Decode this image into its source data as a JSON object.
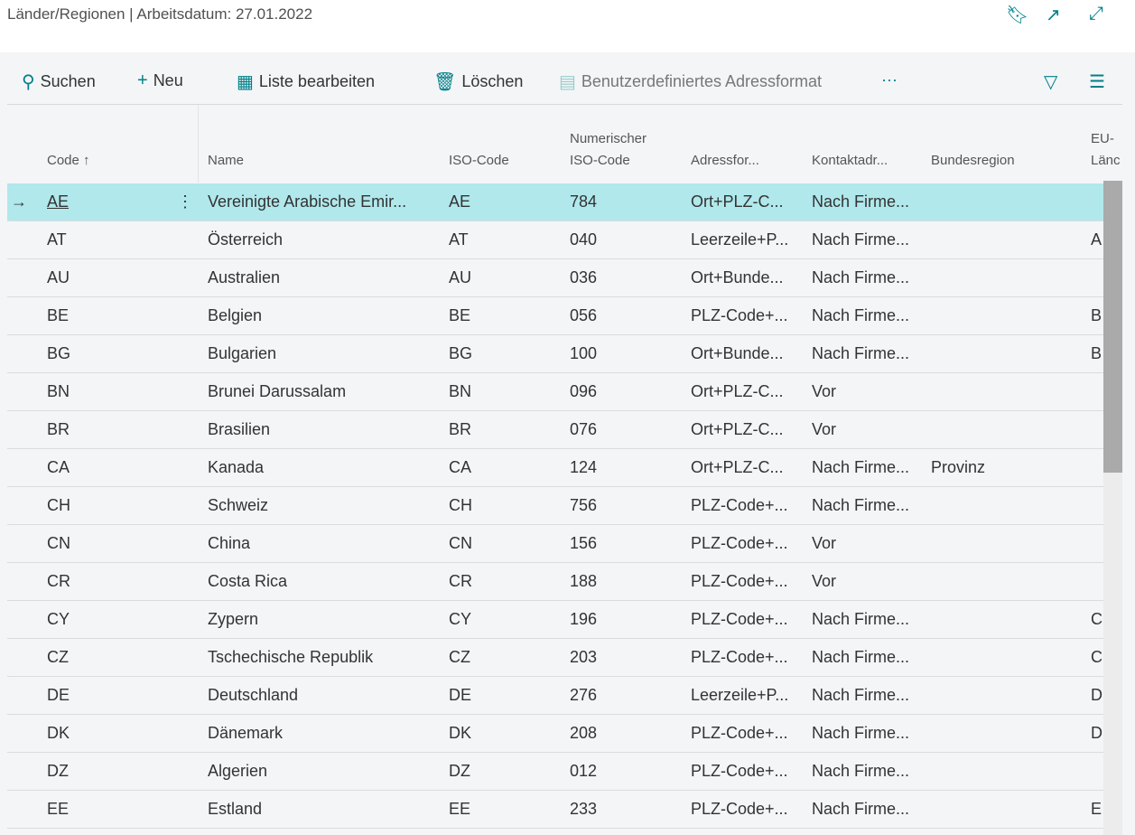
{
  "header": {
    "title": "Länder/Regionen | Arbeitsdatum: 27.01.2022",
    "icons": [
      "bookmark-icon",
      "open-new-window-icon",
      "expand-icon"
    ]
  },
  "toolbar": {
    "search": "Suchen",
    "new": "Neu",
    "edit_list": "Liste bearbeiten",
    "delete": "Löschen",
    "custom_address": "Benutzerdefiniertes Adressformat",
    "more": "···"
  },
  "columns": {
    "code": "Code",
    "sort_indicator": "↑",
    "name": "Name",
    "iso": "ISO-Code",
    "numeric_iso_1": "Numerischer",
    "numeric_iso_2": "ISO-Code",
    "address_format": "Adressfor...",
    "contact_address": "Kontaktadr...",
    "county": "Bundesregion",
    "eu_1": "EU-",
    "eu_2": "Länc"
  },
  "rows": [
    {
      "code": "AE",
      "name": "Vereinigte Arabische Emir...",
      "iso": "AE",
      "num": "784",
      "addr": "Ort+PLZ-C...",
      "contact": "Nach Firme...",
      "county": "",
      "eu": ""
    },
    {
      "code": "AT",
      "name": "Österreich",
      "iso": "AT",
      "num": "040",
      "addr": "Leerzeile+P...",
      "contact": "Nach Firme...",
      "county": "",
      "eu": "A"
    },
    {
      "code": "AU",
      "name": "Australien",
      "iso": "AU",
      "num": "036",
      "addr": "Ort+Bunde...",
      "contact": "Nach Firme...",
      "county": "",
      "eu": ""
    },
    {
      "code": "BE",
      "name": "Belgien",
      "iso": "BE",
      "num": "056",
      "addr": "PLZ-Code+...",
      "contact": "Nach Firme...",
      "county": "",
      "eu": "B"
    },
    {
      "code": "BG",
      "name": "Bulgarien",
      "iso": "BG",
      "num": "100",
      "addr": "Ort+Bunde...",
      "contact": "Nach Firme...",
      "county": "",
      "eu": "B"
    },
    {
      "code": "BN",
      "name": "Brunei Darussalam",
      "iso": "BN",
      "num": "096",
      "addr": "Ort+PLZ-C...",
      "contact": "Vor",
      "county": "",
      "eu": ""
    },
    {
      "code": "BR",
      "name": "Brasilien",
      "iso": "BR",
      "num": "076",
      "addr": "Ort+PLZ-C...",
      "contact": "Vor",
      "county": "",
      "eu": ""
    },
    {
      "code": "CA",
      "name": "Kanada",
      "iso": "CA",
      "num": "124",
      "addr": "Ort+PLZ-C...",
      "contact": "Nach Firme...",
      "county": "Provinz",
      "eu": ""
    },
    {
      "code": "CH",
      "name": "Schweiz",
      "iso": "CH",
      "num": "756",
      "addr": "PLZ-Code+...",
      "contact": "Nach Firme...",
      "county": "",
      "eu": ""
    },
    {
      "code": "CN",
      "name": "China",
      "iso": "CN",
      "num": "156",
      "addr": "PLZ-Code+...",
      "contact": "Vor",
      "county": "",
      "eu": ""
    },
    {
      "code": "CR",
      "name": "Costa Rica",
      "iso": "CR",
      "num": "188",
      "addr": "PLZ-Code+...",
      "contact": "Vor",
      "county": "",
      "eu": ""
    },
    {
      "code": "CY",
      "name": "Zypern",
      "iso": "CY",
      "num": "196",
      "addr": "PLZ-Code+...",
      "contact": "Nach Firme...",
      "county": "",
      "eu": "C"
    },
    {
      "code": "CZ",
      "name": "Tschechische Republik",
      "iso": "CZ",
      "num": "203",
      "addr": "PLZ-Code+...",
      "contact": "Nach Firme...",
      "county": "",
      "eu": "C"
    },
    {
      "code": "DE",
      "name": "Deutschland",
      "iso": "DE",
      "num": "276",
      "addr": "Leerzeile+P...",
      "contact": "Nach Firme...",
      "county": "",
      "eu": "D"
    },
    {
      "code": "DK",
      "name": "Dänemark",
      "iso": "DK",
      "num": "208",
      "addr": "PLZ-Code+...",
      "contact": "Nach Firme...",
      "county": "",
      "eu": "D"
    },
    {
      "code": "DZ",
      "name": "Algerien",
      "iso": "DZ",
      "num": "012",
      "addr": "PLZ-Code+...",
      "contact": "Nach Firme...",
      "county": "",
      "eu": ""
    },
    {
      "code": "EE",
      "name": "Estland",
      "iso": "EE",
      "num": "233",
      "addr": "PLZ-Code+...",
      "contact": "Nach Firme...",
      "county": "",
      "eu": "E"
    }
  ],
  "colors": {
    "accent": "#00808a",
    "selected_row": "#b0e8ec"
  }
}
